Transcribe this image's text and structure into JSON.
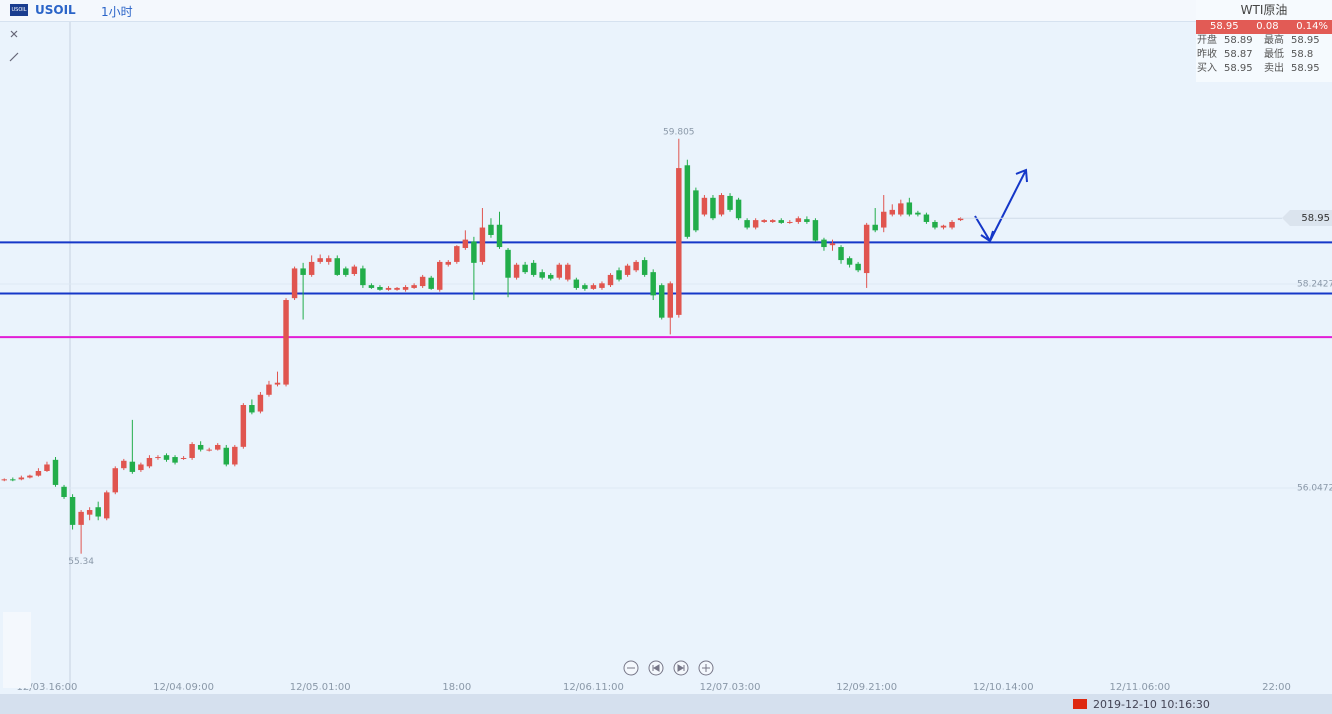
{
  "header": {
    "symbol": "USOIL",
    "interval": "1小时"
  },
  "quote": {
    "title": "WTI原油",
    "price": 58.95,
    "change": 0.08,
    "change_pct": "0.14%",
    "rows": [
      [
        "开盘",
        58.89,
        "最高",
        58.95
      ],
      [
        "昨收",
        58.87,
        "最低",
        58.8
      ],
      [
        "买入",
        58.95,
        "卖出",
        58.95
      ]
    ]
  },
  "status": {
    "time": "2019-12-10 10:16:30"
  },
  "chart_data": {
    "type": "candlestick",
    "up_color": "#e0554f",
    "down_color": "#22ad4a",
    "ylim": [
      53.873,
      61.062
    ],
    "yticks": [
      56.0472,
      58.2427
    ],
    "xlim": [
      -0.5,
      155.5
    ],
    "xticks": [
      {
        "value": 5,
        "label": "12/03 16:00"
      },
      {
        "value": 21,
        "label": "12/04 09:00"
      },
      {
        "value": 37,
        "label": "12/05 01:00"
      },
      {
        "value": 53,
        "label": "18:00"
      },
      {
        "value": 69,
        "label": "12/06 11:00"
      },
      {
        "value": 85,
        "label": "12/07 03:00"
      },
      {
        "value": 101,
        "label": "12/09 21:00"
      },
      {
        "value": 117,
        "label": "12/10 14:00"
      },
      {
        "value": 133,
        "label": "12/11 06:00"
      },
      {
        "value": 149,
        "label": "22:00"
      }
    ],
    "levels": [
      {
        "value": 58.69,
        "color": "#1537c8"
      },
      {
        "value": 58.14,
        "color": "#1537c8"
      },
      {
        "value": 57.67,
        "color": "#e21cd6"
      }
    ],
    "ohlc": [
      [
        56.13,
        56.15,
        56.12,
        56.14
      ],
      [
        56.14,
        56.16,
        56.12,
        56.13
      ],
      [
        56.14,
        56.18,
        56.13,
        56.16
      ],
      [
        56.16,
        56.19,
        56.15,
        56.18
      ],
      [
        56.18,
        56.26,
        56.17,
        56.23
      ],
      [
        56.23,
        56.33,
        56.22,
        56.3
      ],
      [
        56.35,
        56.38,
        56.06,
        56.08
      ],
      [
        56.06,
        56.08,
        55.93,
        55.95
      ],
      [
        55.95,
        55.98,
        55.6,
        55.65
      ],
      [
        55.65,
        55.81,
        55.34,
        55.79
      ],
      [
        55.76,
        55.84,
        55.7,
        55.81
      ],
      [
        55.84,
        55.9,
        55.7,
        55.74
      ],
      [
        55.72,
        56.02,
        55.7,
        56.0
      ],
      [
        56.0,
        56.28,
        55.98,
        56.26
      ],
      [
        56.26,
        56.36,
        56.24,
        56.34
      ],
      [
        56.33,
        56.78,
        56.2,
        56.22
      ],
      [
        56.24,
        56.32,
        56.22,
        56.3
      ],
      [
        56.28,
        56.4,
        56.26,
        56.37
      ],
      [
        56.37,
        56.4,
        56.35,
        56.38
      ],
      [
        56.4,
        56.42,
        56.33,
        56.35
      ],
      [
        56.38,
        56.4,
        56.3,
        56.32
      ],
      [
        56.37,
        56.39,
        56.35,
        56.37
      ],
      [
        56.37,
        56.54,
        56.35,
        56.52
      ],
      [
        56.51,
        56.55,
        56.44,
        56.46
      ],
      [
        56.46,
        56.48,
        56.44,
        56.46
      ],
      [
        56.46,
        56.53,
        56.45,
        56.51
      ],
      [
        56.48,
        56.51,
        56.28,
        56.3
      ],
      [
        56.3,
        56.51,
        56.28,
        56.49
      ],
      [
        56.49,
        56.96,
        56.47,
        56.94
      ],
      [
        56.94,
        57.0,
        56.84,
        56.86
      ],
      [
        56.87,
        57.08,
        56.85,
        57.05
      ],
      [
        57.05,
        57.2,
        57.03,
        57.16
      ],
      [
        57.16,
        57.3,
        57.14,
        57.18
      ],
      [
        57.16,
        58.09,
        57.14,
        58.07
      ],
      [
        58.09,
        58.43,
        58.07,
        58.41
      ],
      [
        58.41,
        58.47,
        57.86,
        58.34
      ],
      [
        58.34,
        58.55,
        58.32,
        58.48
      ],
      [
        58.48,
        58.56,
        58.46,
        58.52
      ],
      [
        58.48,
        58.55,
        58.45,
        58.52
      ],
      [
        58.52,
        58.55,
        58.33,
        58.34
      ],
      [
        58.41,
        58.43,
        58.32,
        58.34
      ],
      [
        58.35,
        58.45,
        58.33,
        58.43
      ],
      [
        58.41,
        58.44,
        58.2,
        58.23
      ],
      [
        58.23,
        58.25,
        58.19,
        58.2
      ],
      [
        58.21,
        58.23,
        58.17,
        58.18
      ],
      [
        58.18,
        58.22,
        58.17,
        58.2
      ],
      [
        58.18,
        58.21,
        58.17,
        58.2
      ],
      [
        58.18,
        58.23,
        58.16,
        58.21
      ],
      [
        58.2,
        58.25,
        58.19,
        58.23
      ],
      [
        58.22,
        58.34,
        58.2,
        58.32
      ],
      [
        58.31,
        58.33,
        58.18,
        58.19
      ],
      [
        58.18,
        58.5,
        58.16,
        58.48
      ],
      [
        58.45,
        58.5,
        58.43,
        58.48
      ],
      [
        58.48,
        58.66,
        58.46,
        58.65
      ],
      [
        58.63,
        58.82,
        58.61,
        58.72
      ],
      [
        58.7,
        58.75,
        58.07,
        58.47
      ],
      [
        58.48,
        59.06,
        58.45,
        58.85
      ],
      [
        58.88,
        58.95,
        58.74,
        58.77
      ],
      [
        58.88,
        59.02,
        58.62,
        58.64
      ],
      [
        58.61,
        58.63,
        58.1,
        58.31
      ],
      [
        58.31,
        58.47,
        58.29,
        58.45
      ],
      [
        58.45,
        58.48,
        58.35,
        58.37
      ],
      [
        58.47,
        58.5,
        58.32,
        58.34
      ],
      [
        58.37,
        58.4,
        58.29,
        58.31
      ],
      [
        58.34,
        58.36,
        58.28,
        58.3
      ],
      [
        58.31,
        58.47,
        58.29,
        58.45
      ],
      [
        58.29,
        58.47,
        58.27,
        58.45
      ],
      [
        58.29,
        58.31,
        58.18,
        58.2
      ],
      [
        58.23,
        58.25,
        58.17,
        58.19
      ],
      [
        58.19,
        58.25,
        58.18,
        58.23
      ],
      [
        58.2,
        58.27,
        58.18,
        58.25
      ],
      [
        58.23,
        58.36,
        58.21,
        58.34
      ],
      [
        58.39,
        58.42,
        58.27,
        58.29
      ],
      [
        58.34,
        58.46,
        58.32,
        58.44
      ],
      [
        58.39,
        58.5,
        58.37,
        58.48
      ],
      [
        58.5,
        58.53,
        58.32,
        58.34
      ],
      [
        58.37,
        58.4,
        58.07,
        58.12
      ],
      [
        58.23,
        58.25,
        57.86,
        57.88
      ],
      [
        57.88,
        58.27,
        57.7,
        58.25
      ],
      [
        57.91,
        59.805,
        57.88,
        59.49
      ],
      [
        59.52,
        59.58,
        58.73,
        58.75
      ],
      [
        59.25,
        59.28,
        58.8,
        58.82
      ],
      [
        58.99,
        59.2,
        58.97,
        59.17
      ],
      [
        59.17,
        59.2,
        58.93,
        58.95
      ],
      [
        58.99,
        59.22,
        58.97,
        59.2
      ],
      [
        59.19,
        59.22,
        59.02,
        59.04
      ],
      [
        59.15,
        59.17,
        58.93,
        58.95
      ],
      [
        58.93,
        58.95,
        58.83,
        58.85
      ],
      [
        58.85,
        58.95,
        58.83,
        58.93
      ],
      [
        58.91,
        58.94,
        58.9,
        58.93
      ],
      [
        58.91,
        58.94,
        58.9,
        58.93
      ],
      [
        58.93,
        58.95,
        58.89,
        58.9
      ],
      [
        58.91,
        58.93,
        58.89,
        58.91
      ],
      [
        58.91,
        58.97,
        58.89,
        58.95
      ],
      [
        58.94,
        58.97,
        58.89,
        58.91
      ],
      [
        58.93,
        58.95,
        58.7,
        58.71
      ],
      [
        58.72,
        58.74,
        58.6,
        58.64
      ],
      [
        58.66,
        58.72,
        58.6,
        58.68
      ],
      [
        58.64,
        58.66,
        58.46,
        58.5
      ],
      [
        58.52,
        58.54,
        58.42,
        58.45
      ],
      [
        58.46,
        58.48,
        58.37,
        58.39
      ],
      [
        58.36,
        58.9,
        58.2,
        58.88
      ],
      [
        58.88,
        59.06,
        58.8,
        58.82
      ],
      [
        58.85,
        59.2,
        58.8,
        59.02
      ],
      [
        58.99,
        59.1,
        58.97,
        59.04
      ],
      [
        58.99,
        59.15,
        58.97,
        59.11
      ],
      [
        59.12,
        59.17,
        58.97,
        58.99
      ],
      [
        59.01,
        59.03,
        58.97,
        58.99
      ],
      [
        58.99,
        59.01,
        58.89,
        58.91
      ],
      [
        58.91,
        58.93,
        58.83,
        58.85
      ],
      [
        58.85,
        58.88,
        58.83,
        58.87
      ],
      [
        58.85,
        58.93,
        58.83,
        58.91
      ],
      [
        58.93,
        58.96,
        58.92,
        58.95
      ]
    ]
  }
}
